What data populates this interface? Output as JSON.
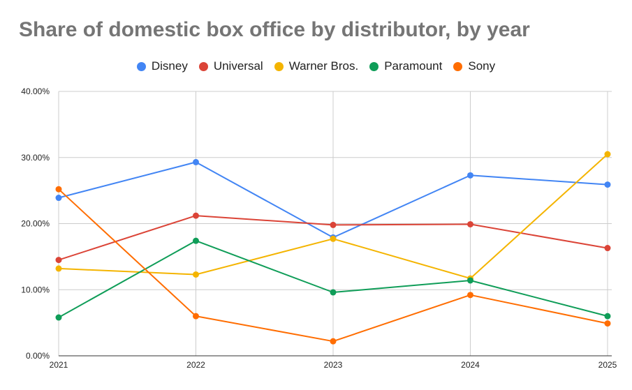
{
  "chart_data": {
    "type": "line",
    "title": "Share of domestic box office by distributor, by year",
    "xlabel": "",
    "ylabel": "",
    "categories": [
      "2021",
      "2022",
      "2023",
      "2024",
      "2025"
    ],
    "ylim": [
      0,
      40
    ],
    "yticks": [
      0,
      10,
      20,
      30,
      40
    ],
    "ytick_labels": [
      "0.00%",
      "10.00%",
      "20.00%",
      "30.00%",
      "40.00%"
    ],
    "grid": true,
    "legend_position": "top",
    "series": [
      {
        "name": "Disney",
        "color": "#4285f4",
        "values": [
          23.9,
          29.3,
          17.9,
          27.3,
          25.9
        ]
      },
      {
        "name": "Universal",
        "color": "#db4437",
        "values": [
          14.5,
          21.2,
          19.8,
          19.9,
          16.3
        ]
      },
      {
        "name": "Warner Bros.",
        "color": "#f4b400",
        "values": [
          13.2,
          12.3,
          17.7,
          11.7,
          30.5
        ]
      },
      {
        "name": "Paramount",
        "color": "#0f9d58",
        "values": [
          5.8,
          17.4,
          9.6,
          11.4,
          6.0
        ]
      },
      {
        "name": "Sony",
        "color": "#ff6d01",
        "values": [
          25.2,
          6.0,
          2.2,
          9.2,
          4.9
        ]
      }
    ]
  }
}
